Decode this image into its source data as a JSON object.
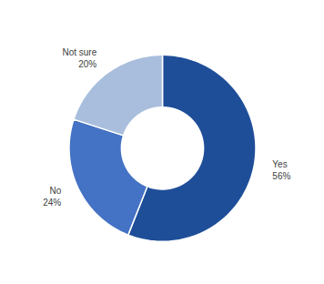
{
  "chart_data": {
    "type": "pie",
    "categories": [
      "Yes",
      "No",
      "Not sure"
    ],
    "values": [
      56,
      24,
      20
    ],
    "value_labels": [
      "56%",
      "24%",
      "20%"
    ],
    "colors": [
      "#1F4E99",
      "#4472C4",
      "#A8BEDC"
    ],
    "data_labels": true
  }
}
